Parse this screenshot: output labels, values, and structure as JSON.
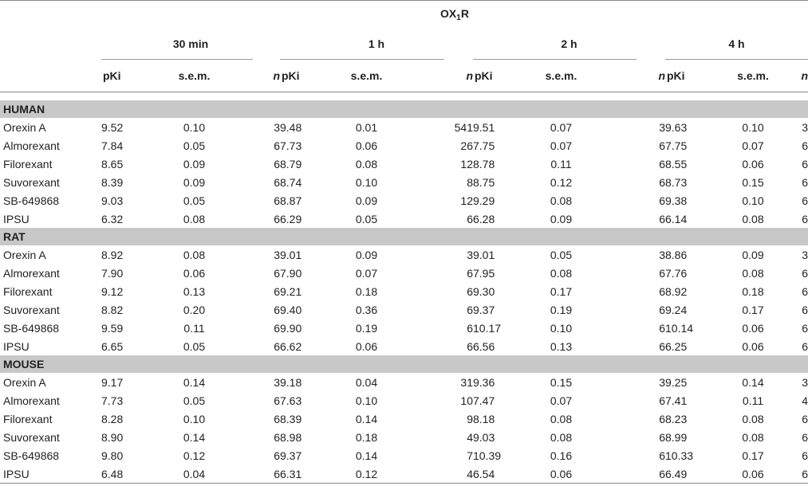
{
  "receptor": {
    "prefix": "OX",
    "sub": "1",
    "suffix": "R"
  },
  "time_points": [
    "30 min",
    "1 h",
    "2 h",
    "4 h"
  ],
  "columns": {
    "pki": "pKi",
    "sem": "s.e.m.",
    "n": "n"
  },
  "sections": [
    {
      "name": "HUMAN",
      "rows": [
        {
          "compound": "Orexin A",
          "values": [
            [
              "9.52",
              "0.10",
              "3"
            ],
            [
              "9.48",
              "0.01",
              "541"
            ],
            [
              "9.51",
              "0.07",
              "3"
            ],
            [
              "9.63",
              "0.10",
              "3"
            ]
          ]
        },
        {
          "compound": "Almorexant",
          "values": [
            [
              "7.84",
              "0.05",
              "6"
            ],
            [
              "7.73",
              "0.06",
              "26"
            ],
            [
              "7.75",
              "0.07",
              "6"
            ],
            [
              "7.75",
              "0.07",
              "6"
            ]
          ]
        },
        {
          "compound": "Filorexant",
          "values": [
            [
              "8.65",
              "0.09",
              "6"
            ],
            [
              "8.79",
              "0.08",
              "12"
            ],
            [
              "8.78",
              "0.11",
              "6"
            ],
            [
              "8.55",
              "0.06",
              "6"
            ]
          ]
        },
        {
          "compound": "Suvorexant",
          "values": [
            [
              "8.39",
              "0.09",
              "6"
            ],
            [
              "8.74",
              "0.10",
              "8"
            ],
            [
              "8.75",
              "0.12",
              "6"
            ],
            [
              "8.73",
              "0.15",
              "6"
            ]
          ]
        },
        {
          "compound": "SB-649868",
          "values": [
            [
              "9.03",
              "0.05",
              "6"
            ],
            [
              "8.87",
              "0.09",
              "12"
            ],
            [
              "9.29",
              "0.08",
              "6"
            ],
            [
              "9.38",
              "0.10",
              "6"
            ]
          ]
        },
        {
          "compound": "IPSU",
          "values": [
            [
              "6.32",
              "0.08",
              "6"
            ],
            [
              "6.29",
              "0.05",
              "6"
            ],
            [
              "6.28",
              "0.09",
              "6"
            ],
            [
              "6.14",
              "0.08",
              "6"
            ]
          ]
        }
      ]
    },
    {
      "name": "RAT",
      "rows": [
        {
          "compound": "Orexin A",
          "values": [
            [
              "8.92",
              "0.08",
              "3"
            ],
            [
              "9.01",
              "0.09",
              "3"
            ],
            [
              "9.01",
              "0.05",
              "3"
            ],
            [
              "8.86",
              "0.09",
              "3"
            ]
          ]
        },
        {
          "compound": "Almorexant",
          "values": [
            [
              "7.90",
              "0.06",
              "6"
            ],
            [
              "7.90",
              "0.07",
              "6"
            ],
            [
              "7.95",
              "0.08",
              "6"
            ],
            [
              "7.76",
              "0.08",
              "6"
            ]
          ]
        },
        {
          "compound": "Filorexant",
          "values": [
            [
              "9.12",
              "0.13",
              "6"
            ],
            [
              "9.21",
              "0.18",
              "6"
            ],
            [
              "9.30",
              "0.17",
              "6"
            ],
            [
              "8.92",
              "0.18",
              "6"
            ]
          ]
        },
        {
          "compound": "Suvorexant",
          "values": [
            [
              "8.82",
              "0.20",
              "6"
            ],
            [
              "9.40",
              "0.36",
              "6"
            ],
            [
              "9.37",
              "0.19",
              "6"
            ],
            [
              "9.24",
              "0.17",
              "6"
            ]
          ]
        },
        {
          "compound": "SB-649868",
          "values": [
            [
              "9.59",
              "0.11",
              "6"
            ],
            [
              "9.90",
              "0.19",
              "6"
            ],
            [
              "10.17",
              "0.10",
              "6"
            ],
            [
              "10.14",
              "0.06",
              "6"
            ]
          ]
        },
        {
          "compound": "IPSU",
          "values": [
            [
              "6.65",
              "0.05",
              "6"
            ],
            [
              "6.62",
              "0.06",
              "6"
            ],
            [
              "6.56",
              "0.13",
              "6"
            ],
            [
              "6.25",
              "0.06",
              "6"
            ]
          ]
        }
      ]
    },
    {
      "name": "MOUSE",
      "rows": [
        {
          "compound": "Orexin A",
          "values": [
            [
              "9.17",
              "0.14",
              "3"
            ],
            [
              "9.18",
              "0.04",
              "31"
            ],
            [
              "9.36",
              "0.15",
              "3"
            ],
            [
              "9.25",
              "0.14",
              "3"
            ]
          ]
        },
        {
          "compound": "Almorexant",
          "values": [
            [
              "7.73",
              "0.05",
              "6"
            ],
            [
              "7.63",
              "0.10",
              "10"
            ],
            [
              "7.47",
              "0.07",
              "6"
            ],
            [
              "7.41",
              "0.11",
              "4"
            ]
          ]
        },
        {
          "compound": "Filorexant",
          "values": [
            [
              "8.28",
              "0.10",
              "6"
            ],
            [
              "8.39",
              "0.14",
              "9"
            ],
            [
              "8.18",
              "0.08",
              "6"
            ],
            [
              "8.23",
              "0.08",
              "6"
            ]
          ]
        },
        {
          "compound": "Suvorexant",
          "values": [
            [
              "8.90",
              "0.14",
              "6"
            ],
            [
              "8.98",
              "0.18",
              "4"
            ],
            [
              "9.03",
              "0.08",
              "6"
            ],
            [
              "8.99",
              "0.08",
              "6"
            ]
          ]
        },
        {
          "compound": "SB-649868",
          "values": [
            [
              "9.80",
              "0.12",
              "6"
            ],
            [
              "9.37",
              "0.14",
              "7"
            ],
            [
              "10.39",
              "0.16",
              "6"
            ],
            [
              "10.33",
              "0.17",
              "6"
            ]
          ]
        },
        {
          "compound": "IPSU",
          "values": [
            [
              "6.48",
              "0.04",
              "6"
            ],
            [
              "6.31",
              "0.12",
              "4"
            ],
            [
              "6.54",
              "0.06",
              "6"
            ],
            [
              "6.49",
              "0.06",
              "6"
            ]
          ]
        }
      ]
    }
  ]
}
